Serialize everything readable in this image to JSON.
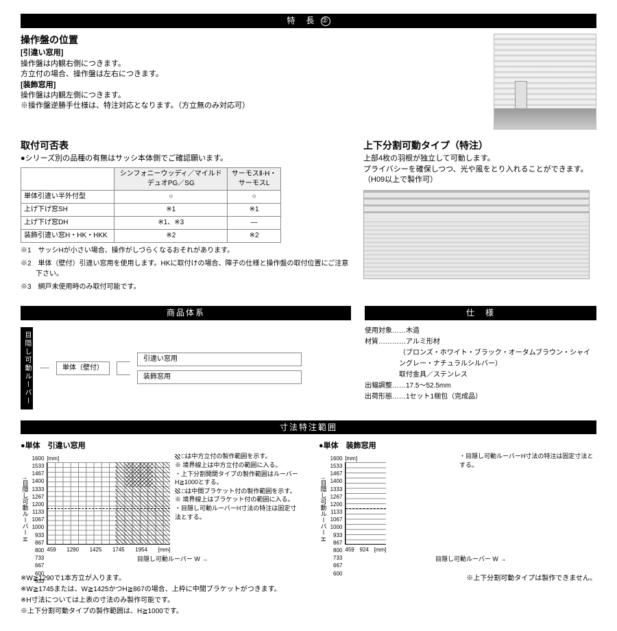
{
  "header": {
    "title": "特　長",
    "num": "②"
  },
  "pos": {
    "heading": "操作盤の位置",
    "h1": "[引違い窓用]",
    "t1a": "操作盤は内観右側につきます。",
    "t1b": "方立付の場合、操作盤は左右につきます。",
    "h2": "[装飾窓用]",
    "t2a": "操作盤は内観左側につきます。",
    "note": "※操作盤逆勝手仕様は、特注対応となります。（方立無のみ対応可）"
  },
  "tableSec": {
    "heading": "取付可否表",
    "lead": "●シリーズ別の品種の有無はサッシ本体側でご確認願います。",
    "cols": [
      "",
      "シンフォニーウッディ／マイルド\nデュオPG／SG",
      "サーモスⅡ-H・\nサーモスL"
    ],
    "rows": [
      [
        "単体引違い半外付型",
        "○",
        "○"
      ],
      [
        "上げ下げ窓SH",
        "※1",
        "※1"
      ],
      [
        "上げ下げ窓DH",
        "※1、※3",
        "—"
      ],
      [
        "装飾引違い窓H・HK・HKK",
        "※2",
        "※2"
      ]
    ],
    "n1": "※1　サッシHが小さい場合、操作がしづらくなるおそれがあります。",
    "n2": "※2　単体（壁付）引違い窓用を使用します。HKに取付けの場合、障子の仕様と操作盤の取付位置にご注意下さい。",
    "n3": "※3　網戸未使用時のみ取付可能です。"
  },
  "split": {
    "heading": "上下分割可動タイプ（特注）",
    "t1": "上部4枚の羽根が独立して可動します。",
    "t2": "プライバシーを確保しつつ、光や風をとり入れることができます。",
    "t3": "（H09以上で製作可）"
  },
  "lineup": {
    "title": "商品体系",
    "vlabel": "目隠し可動ルーバー",
    "root": "単体（壁付）",
    "c1": "引違い窓用",
    "c2": "装飾窓用"
  },
  "spec": {
    "title": "仕　様",
    "rows": [
      [
        "使用対象",
        "木造"
      ],
      [
        "材質",
        "アルミ形材"
      ],
      [
        "",
        "（ブロンズ・ホワイト・ブラック・オータムブラウン・シャイングレー・ナチュラルシルバー）"
      ],
      [
        "",
        "取付金具／ステンレス"
      ],
      [
        "出幅調整",
        "17.5～52.5mm"
      ],
      [
        "出荷形態",
        "1セット1梱包（完成品）"
      ]
    ]
  },
  "dim": {
    "title": "寸法特注範囲",
    "left": {
      "hd": "●単体　引違い窓用",
      "unit": "[mm]",
      "yticks": [
        "1600",
        "1533",
        "1467",
        "1400",
        "1333",
        "1267",
        "1200",
        "1133",
        "1067",
        "1000",
        "933",
        "867",
        "800",
        "733",
        "667",
        "600",
        "533"
      ],
      "ylabel": "↑目隠し可動ルーバー H",
      "xticks": [
        "459",
        "1290",
        "1425",
        "1745",
        "1954"
      ],
      "xunit": "[mm]",
      "xlabel": "目隠し可動ルーバー W →",
      "legend": [
        "□は中方立付の製作範囲を示す。",
        "※ 境界線上は中方立付の範囲に入る。",
        "・上下分割開閉タイプの製作範囲はルーバーH≧1000とする。",
        "□は中間ブラケット付の製作範囲を示す。",
        "※ 境界線上はブラケット付の範囲に入る。",
        "・目隠し可動ルーバーH寸法の特注は固定寸法とする。"
      ]
    },
    "right": {
      "hd": "●単体　装飾窓用",
      "unit": "[mm]",
      "yticks": [
        "1600",
        "1533",
        "1467",
        "1400",
        "1333",
        "1267",
        "1200",
        "1133",
        "1067",
        "1000",
        "933",
        "867",
        "800",
        "733",
        "667",
        "600"
      ],
      "ylabel": "↑目隠し可動ルーバー H",
      "xticks": [
        "459",
        "924"
      ],
      "xunit": "[mm]",
      "xlabel": "目隠し可動ルーバー W →",
      "legend": [
        "・目隠し可動ルーバーH寸法の特注は固定寸法とする。"
      ],
      "bottom_note": "※上下分割可動タイプは製作できません。"
    },
    "notes": [
      "※W≧1290で1本方立が入ります。",
      "※W≧1745または、W≧1425かつH≧867の場合、上枠に中間ブラケットがつきます。",
      "※H寸法については上表の寸法のみ製作可能です。",
      "※上下分割可動タイプの製作範囲は、H≧1000です。"
    ]
  }
}
